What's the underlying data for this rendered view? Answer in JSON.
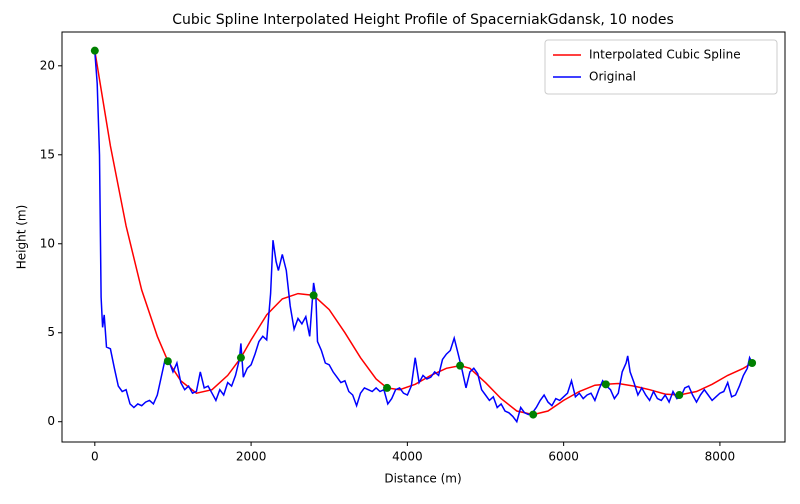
{
  "chart_data": {
    "type": "line",
    "title": "Cubic Spline Interpolated Height Profile of SpacerniakGdansk, 10 nodes",
    "x_label": "Distance (m)",
    "y_label": "Height (m)",
    "xlim": [
      -420,
      8833
    ],
    "xticks": [
      0,
      2000,
      4000,
      6000,
      8000
    ],
    "ylim": [
      -1.14,
      21.9
    ],
    "yticks": [
      0,
      5,
      10,
      15,
      20
    ],
    "legend": "upper right",
    "series": [
      {
        "name": "Interpolated Cubic Spline",
        "color": "#ff0000",
        "x": [
          0,
          200,
          400,
          600,
          800,
          935,
          1100,
          1300,
          1500,
          1700,
          1870,
          2000,
          2200,
          2400,
          2600,
          2800,
          3000,
          3200,
          3400,
          3600,
          3740,
          3900,
          4100,
          4300,
          4500,
          4675,
          4800,
          5000,
          5200,
          5400,
          5610,
          5800,
          6000,
          6200,
          6400,
          6540,
          6700,
          6900,
          7100,
          7300,
          7480,
          7700,
          7900,
          8100,
          8300,
          8412
        ],
        "values": [
          20.85,
          15.5,
          11,
          7.4,
          4.8,
          3.4,
          2.3,
          1.6,
          1.8,
          2.6,
          3.6,
          4.6,
          6.0,
          6.9,
          7.2,
          7.1,
          6.3,
          5.0,
          3.6,
          2.4,
          1.9,
          1.8,
          2.1,
          2.6,
          3.0,
          3.15,
          3.0,
          2.2,
          1.3,
          0.6,
          0.4,
          0.6,
          1.2,
          1.7,
          2.05,
          2.1,
          2.15,
          2.0,
          1.8,
          1.55,
          1.5,
          1.7,
          2.1,
          2.6,
          3.0,
          3.3
        ]
      },
      {
        "name": "Original",
        "color": "#0000ff",
        "x": [
          0,
          30,
          60,
          80,
          100,
          120,
          150,
          200,
          250,
          300,
          350,
          400,
          450,
          500,
          550,
          600,
          650,
          700,
          750,
          800,
          850,
          900,
          950,
          1000,
          1050,
          1100,
          1150,
          1200,
          1250,
          1300,
          1350,
          1400,
          1450,
          1500,
          1550,
          1600,
          1650,
          1700,
          1750,
          1800,
          1850,
          1870,
          1900,
          1950,
          2000,
          2050,
          2100,
          2150,
          2200,
          2250,
          2280,
          2320,
          2350,
          2400,
          2450,
          2500,
          2550,
          2600,
          2650,
          2700,
          2750,
          2800,
          2830,
          2850,
          2900,
          2950,
          3000,
          3050,
          3100,
          3150,
          3200,
          3250,
          3300,
          3350,
          3400,
          3450,
          3500,
          3550,
          3600,
          3650,
          3700,
          3750,
          3800,
          3850,
          3900,
          3950,
          4000,
          4050,
          4100,
          4150,
          4200,
          4250,
          4300,
          4350,
          4400,
          4450,
          4500,
          4550,
          4600,
          4650,
          4700,
          4750,
          4800,
          4850,
          4900,
          4950,
          5000,
          5050,
          5100,
          5150,
          5200,
          5250,
          5300,
          5350,
          5400,
          5450,
          5500,
          5550,
          5600,
          5650,
          5700,
          5750,
          5800,
          5850,
          5900,
          5950,
          6000,
          6050,
          6100,
          6150,
          6200,
          6250,
          6300,
          6350,
          6400,
          6450,
          6500,
          6550,
          6600,
          6650,
          6700,
          6750,
          6800,
          6820,
          6850,
          6900,
          6950,
          7000,
          7050,
          7100,
          7150,
          7200,
          7250,
          7300,
          7350,
          7400,
          7450,
          7500,
          7550,
          7600,
          7650,
          7700,
          7750,
          7800,
          7850,
          7900,
          7950,
          8000,
          8050,
          8100,
          8150,
          8200,
          8250,
          8300,
          8350,
          8380,
          8412
        ],
        "values": [
          20.8,
          19,
          15,
          7,
          5.3,
          6,
          4.2,
          4.1,
          3,
          2,
          1.7,
          1.8,
          1,
          0.8,
          1,
          0.9,
          1.1,
          1.2,
          1,
          1.5,
          2.5,
          3.5,
          3.4,
          2.8,
          3.3,
          2.2,
          1.8,
          2,
          1.6,
          1.7,
          2.8,
          1.9,
          2,
          1.6,
          1.2,
          1.8,
          1.5,
          2.2,
          2,
          2.6,
          3.5,
          4.4,
          2.5,
          3,
          3.2,
          3.8,
          4.5,
          4.8,
          4.6,
          7.2,
          10.2,
          9,
          8.5,
          9.4,
          8.5,
          6.5,
          5.2,
          5.8,
          5.5,
          5.9,
          4.8,
          7.8,
          7,
          4.5,
          4,
          3.3,
          3.2,
          2.8,
          2.5,
          2.2,
          2.3,
          1.7,
          1.5,
          0.9,
          1.6,
          1.9,
          1.8,
          1.7,
          1.9,
          1.7,
          1.8,
          1,
          1.3,
          1.8,
          1.9,
          1.6,
          1.5,
          2,
          3.6,
          2.2,
          2.6,
          2.4,
          2.5,
          2.8,
          2.6,
          3.5,
          3.8,
          4,
          4.7,
          3.8,
          2.9,
          1.9,
          2.8,
          3,
          2.7,
          1.8,
          1.5,
          1.2,
          1.4,
          0.8,
          1,
          0.6,
          0.5,
          0.3,
          0,
          0.8,
          0.5,
          0.4,
          0.5,
          0.8,
          1.2,
          1.5,
          1.1,
          0.9,
          1.3,
          1.2,
          1.4,
          1.6,
          2.3,
          1.4,
          1.6,
          1.3,
          1.5,
          1.6,
          1.2,
          1.8,
          2.3,
          2,
          1.8,
          1.3,
          1.6,
          2.8,
          3.3,
          3.7,
          2.8,
          2.2,
          1.5,
          1.9,
          1.5,
          1.2,
          1.7,
          1.3,
          1.2,
          1.5,
          1.1,
          1.7,
          1.3,
          1.4,
          1.9,
          2,
          1.5,
          1.1,
          1.5,
          1.8,
          1.5,
          1.2,
          1.4,
          1.6,
          1.7,
          2.2,
          1.4,
          1.5,
          2,
          2.6,
          3,
          3.6,
          3.3
        ]
      }
    ],
    "nodes": {
      "color": "#008000",
      "x": [
        0,
        935,
        1870,
        2800,
        3740,
        4675,
        5610,
        6540,
        7480,
        8412
      ],
      "values": [
        20.85,
        3.4,
        3.6,
        7.1,
        1.9,
        3.15,
        0.4,
        2.1,
        1.5,
        3.3
      ]
    }
  }
}
